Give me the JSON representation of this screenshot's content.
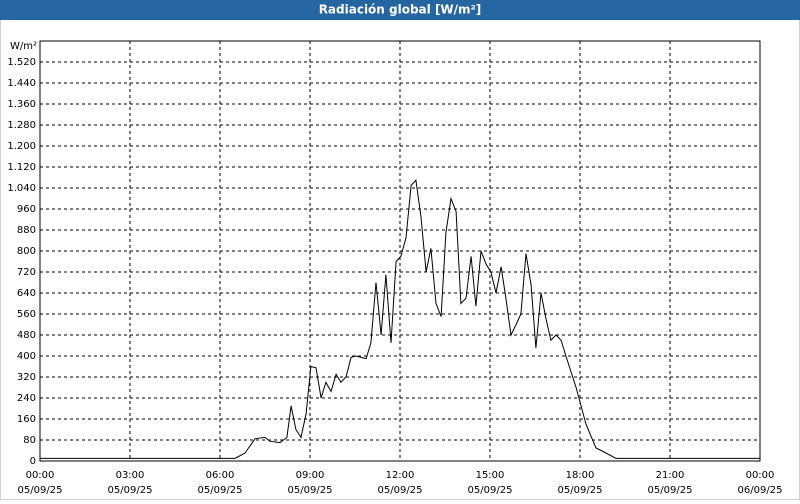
{
  "window_title": "Radiación global [W/m²]",
  "chart_data": {
    "type": "line",
    "y_unit": "W/m²",
    "x": [
      0,
      1,
      2,
      3,
      4,
      5,
      6,
      6.5,
      6.83,
      7.17,
      7.5,
      7.67,
      8.0,
      8.23,
      8.37,
      8.53,
      8.7,
      8.87,
      9.03,
      9.2,
      9.37,
      9.53,
      9.7,
      9.87,
      10.03,
      10.2,
      10.37,
      10.53,
      10.87,
      11.03,
      11.2,
      11.37,
      11.53,
      11.7,
      11.87,
      12.03,
      12.2,
      12.37,
      12.53,
      12.7,
      12.87,
      13.03,
      13.2,
      13.37,
      13.53,
      13.7,
      13.87,
      14.03,
      14.2,
      14.37,
      14.53,
      14.7,
      14.87,
      15.03,
      15.2,
      15.37,
      15.53,
      15.7,
      15.87,
      16.03,
      16.2,
      16.37,
      16.53,
      16.7,
      16.87,
      17.03,
      17.2,
      17.37,
      17.53,
      17.87,
      18.2,
      18.53,
      18.87,
      19.2,
      20,
      21,
      22,
      23,
      24
    ],
    "series": [
      {
        "name": "Radiación global",
        "color": "#000000",
        "values": [
          10,
          10,
          10,
          10,
          10,
          10,
          10,
          10,
          30,
          85,
          90,
          75,
          70,
          90,
          210,
          120,
          90,
          180,
          360,
          355,
          240,
          300,
          265,
          330,
          300,
          320,
          395,
          400,
          390,
          450,
          680,
          480,
          710,
          450,
          760,
          780,
          850,
          1050,
          1070,
          930,
          720,
          810,
          600,
          550,
          870,
          1000,
          950,
          600,
          620,
          780,
          590,
          800,
          750,
          720,
          640,
          740,
          620,
          480,
          520,
          560,
          790,
          670,
          430,
          640,
          540,
          460,
          480,
          460,
          400,
          280,
          140,
          50,
          30,
          10,
          10,
          10,
          10,
          10,
          10
        ]
      }
    ],
    "xlim": [
      0,
      24
    ],
    "xticks": [
      {
        "value": 0,
        "label": "00:00"
      },
      {
        "value": 3,
        "label": "03:00"
      },
      {
        "value": 6,
        "label": "06:00"
      },
      {
        "value": 9,
        "label": "09:00"
      },
      {
        "value": 12,
        "label": "12:00"
      },
      {
        "value": 15,
        "label": "15:00"
      },
      {
        "value": 18,
        "label": "18:00"
      },
      {
        "value": 21,
        "label": "21:00"
      },
      {
        "value": 24,
        "label": "00:00"
      }
    ],
    "xtick_dates": [
      "05/09/25",
      "05/09/25",
      "05/09/25",
      "05/09/25",
      "05/09/25",
      "05/09/25",
      "05/09/25",
      "05/09/25",
      "06/09/25"
    ],
    "ylim": [
      0,
      1600
    ],
    "yticks": [
      0,
      80,
      160,
      240,
      320,
      400,
      480,
      560,
      640,
      720,
      800,
      880,
      960,
      {
        "value": 1040,
        "label": "1.040"
      },
      {
        "value": 1120,
        "label": "1.120"
      },
      {
        "value": 1200,
        "label": "1.200"
      },
      {
        "value": 1280,
        "label": "1.280"
      },
      {
        "value": 1360,
        "label": "1.360"
      },
      {
        "value": 1440,
        "label": "1.440"
      },
      {
        "value": 1520,
        "label": "1.520"
      }
    ],
    "grid": true
  }
}
